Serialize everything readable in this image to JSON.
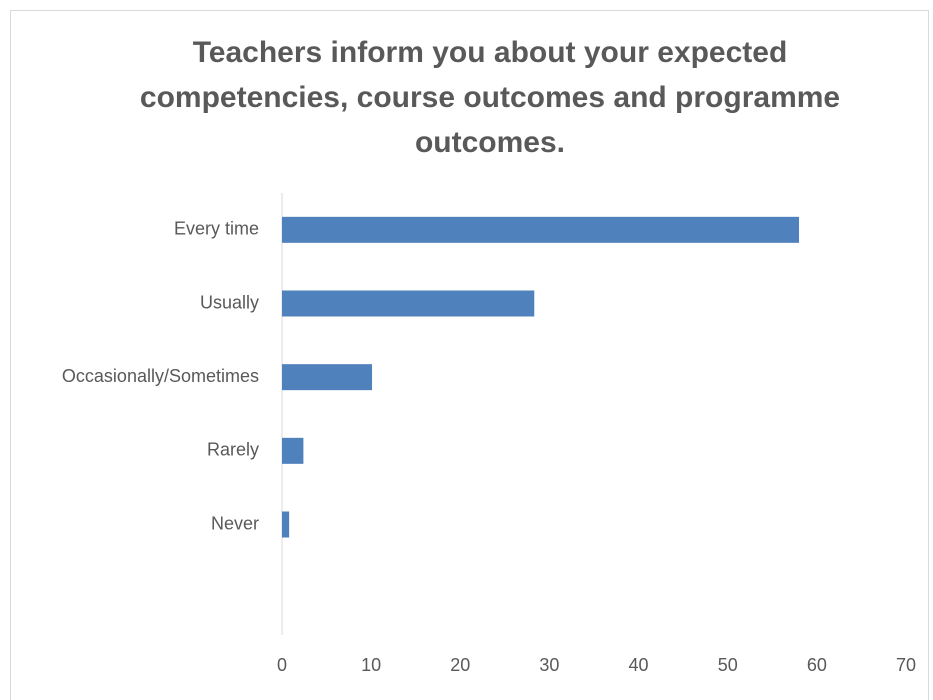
{
  "chart_data": {
    "type": "bar",
    "orientation": "horizontal",
    "title": "Teachers inform you about your expected competencies, course outcomes and programme outcomes.",
    "categories": [
      "Every time",
      "Usually",
      "Occasionally/Sometimes",
      "Rarely",
      "Never",
      null
    ],
    "values": [
      58,
      28.3,
      10.1,
      2.4,
      0.8,
      null
    ],
    "color": "#4f81bd",
    "xlim": [
      0,
      70
    ],
    "xticks": [
      0,
      10,
      20,
      30,
      40,
      50,
      60,
      70
    ],
    "grid": false
  }
}
